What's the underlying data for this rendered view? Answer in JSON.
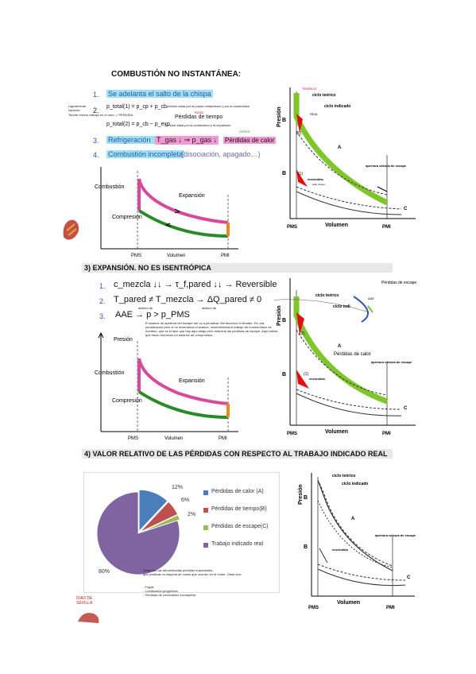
{
  "heading": "COMBUSTIÓN NO INSTANTÁNEA:",
  "list1": {
    "n1": "1.",
    "item1": "Se adelanta el salto de la chispa",
    "n2": "2.",
    "n3": "3.",
    "n4": "4.",
    "eq1": "p_total(1) = p_cp + p_cb",
    "eq1_note": "presion dada por la propia compresion y por la combustion",
    "eq2": "p_total(2) = p_cb − p_exp",
    "eq2_note": "presion dada por la combustion y la expansion",
    "perdidas_tiempo": "Pérdidas de tiempo",
    "rojo": "ROJO",
    "side_note1": "Ligeramente superior:",
    "side_note2": "Tendre menos trabajo en el ciclo -> PERDIDA",
    "refrig": "Refrigeración →",
    "t_gas": "T_gas ↓  ⇒  p_gas ↓",
    "verde": "VERDE",
    "perdidas_calor": "Pérdidas de calor",
    "item4a": "Combustión incompleta",
    "item4b": "(disociación, apagado…)"
  },
  "pv1": {
    "combustion": "Combustión",
    "expansion": "Expansión",
    "compresion": "Compresión",
    "pms": "PMS",
    "volumen": "Volumen",
    "pmi": "PMI"
  },
  "ind1": {
    "presion": "Presión",
    "teorico": "TEORICO",
    "ciclo_teorico": "ciclo teórico",
    "ciclo_indicado": "ciclo indicado",
    "real": "REAL",
    "b": "B",
    "b2": "B",
    "a": "A",
    "c": "C",
    "l1": "(1)",
    "l2": "(2)",
    "encendido": "encendido",
    "enc_note": "salto chispa",
    "apertura": "apertura válvula de escape",
    "pms": "PMS",
    "volumen": "Volumen",
    "pmi": "PMI"
  },
  "sec3": "3)   EXPANSIÓN. NO ES ISENTRÓPICA",
  "list3": {
    "n1": "1.",
    "n2": "2.",
    "n3": "3.",
    "l1": "c_mezcla ↓↓  →  τ_f,pared ↓↓  →  Reversible",
    "l2": "T_pared ≠ T_mezcla → ΔQ_pared ≠ 0",
    "l2_sub1": "distinto de",
    "l2_sub2": "distinto de",
    "l3": "AAE → p > p_PMS",
    "note": "El avance de apertura del escape me va a penalizar. Me favorece el llenado. Es una penalizacion pero si no hicieramos el avance, incrementaria el trabajo de bombeo/lazo de bombeo, que es el lazo que hay aqui abajo pero reduciria las perdidas de escape. Aqui habria que hacer entonces un balance de compromiso"
  },
  "pv2": {
    "presion": "Presión",
    "combustion": "Combustión",
    "expansion": "Expansión",
    "compresion": "Compresión",
    "pms": "PMS",
    "volumen": "Volumen",
    "pmi": "PMI"
  },
  "ind2": {
    "presion": "Presión",
    "ciclo_teorico": "ciclo teórico",
    "ciclo_indi": "ciclo indi",
    "b": "B",
    "b2": "B",
    "a": "A",
    "c": "C",
    "l1": "(1)",
    "l2": "(2)",
    "perdidas_calor": "Pérdidas de calor",
    "encendido": "encendido",
    "apertura": "apertura válvula de escape",
    "perdidas_escape": "Pérdidas de escape",
    "aae": "AAE",
    "pms": "PMS",
    "volumen": "Volumen",
    "pmi": "PMI"
  },
  "sec4": "4)   VALOR RELATIVO DE LAS PÉRDIDAS CON RESPECTO AL TRABAJO INDICADO REAL",
  "chart_data": {
    "type": "pie",
    "categories": [
      "Pérdidas de calor (A)",
      "Pérdidas de tiempo(B)",
      "Pérdidas de escape(C)",
      "Trabajo indicado real"
    ],
    "values": [
      12,
      6,
      2,
      80
    ],
    "labels": [
      "12%",
      "6%",
      "2%",
      "80%"
    ],
    "colors": [
      "#4a7ebb",
      "#c0504d",
      "#9bbb59",
      "#8064a2"
    ],
    "legend_position": "right"
  },
  "pie_note": {
    "line1": "Estas son las denominadas pérdidas importantes,",
    "line2": "que justifican la mayoria de cosas que ocurren en el motor. Otras son:",
    "b1": "- Fugas",
    "b2": "- Combustión progresiva",
    "b3": "- Pérdidas de combustión incompleta"
  },
  "ind3": {
    "presion": "Presión",
    "ciclo_teorico": "ciclo teórico",
    "ciclo_indicado": "ciclo indicado",
    "b": "B",
    "b2": "B",
    "a": "A",
    "c": "C",
    "encendido": "encendido",
    "apertura": "apertura válvula de escape",
    "pms": "PMS",
    "volumen": "Volumen",
    "pmi": "PMI"
  },
  "logo_text": "IDAD DE SEVILLA"
}
